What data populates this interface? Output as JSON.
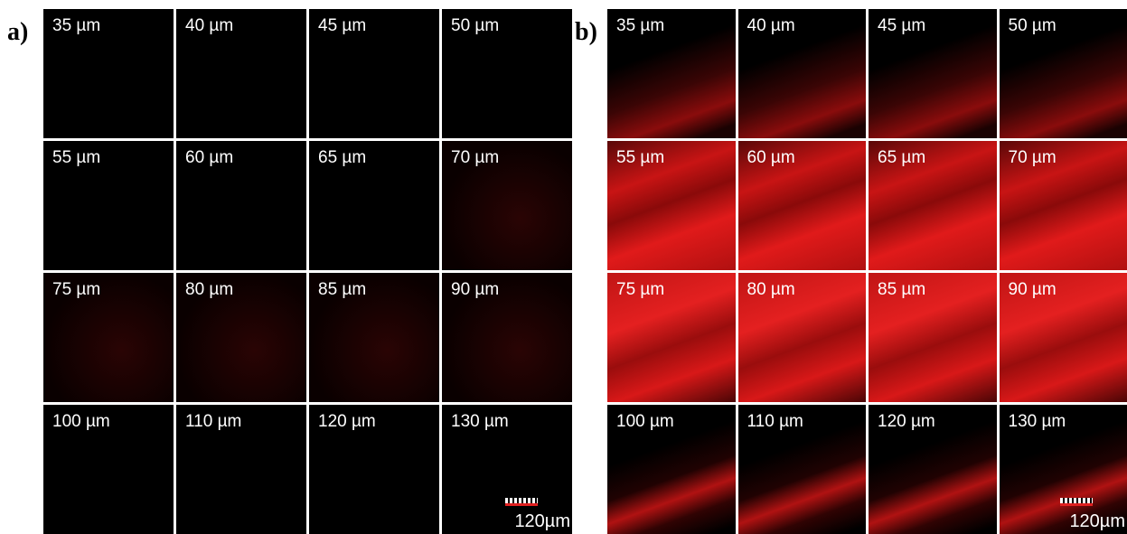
{
  "panels": [
    {
      "label": "a)",
      "tiles": [
        "35 µm",
        "40 µm",
        "45 µm",
        "50 µm",
        "55 µm",
        "60 µm",
        "65 µm",
        "70 µm",
        "75 µm",
        "80 µm",
        "85 µm",
        "90 µm",
        "100 µm",
        "110 µm",
        "120 µm",
        "130 µm"
      ],
      "scale_bar": "120µm"
    },
    {
      "label": "b)",
      "tiles": [
        "35 µm",
        "40 µm",
        "45 µm",
        "50 µm",
        "55 µm",
        "60 µm",
        "65 µm",
        "70 µm",
        "75 µm",
        "80 µm",
        "85 µm",
        "90 µm",
        "100 µm",
        "110 µm",
        "120 µm",
        "130 µm"
      ],
      "scale_bar": "120µm"
    }
  ]
}
